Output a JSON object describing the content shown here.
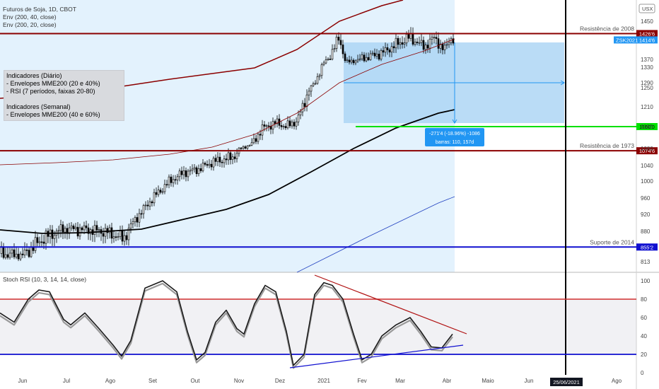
{
  "header": {
    "symbol_line": "Futuros de Soja, 1D, CBOT",
    "env1": "Env (200, 40, close)",
    "env2": "Env (200, 20, close)"
  },
  "currency_button": "USX",
  "notes": {
    "title_daily": "Indicadores (Diário)",
    "daily_1": "- Envelopes MME200 (20 e 40%)",
    "daily_2": "- RSI (7 períodos, faixas 20-80)",
    "title_weekly": "Indicadores (Semanal)",
    "weekly_1": "- Envelopes MME200 (40 e 60%)"
  },
  "levels": {
    "res2008": {
      "label": "Resistência de 2008",
      "value": "1426'6",
      "price": 1426.75,
      "color": "#8b0000"
    },
    "res1973": {
      "label": "Resistência de 1973",
      "value": "1074'6",
      "price": 1074.75,
      "color": "#8b0000"
    },
    "sup2014": {
      "label": "Suporte de 2014",
      "value": "855'2",
      "price": 855.25,
      "color": "#1010d0"
    },
    "target": {
      "value": "1160'0",
      "price": 1160,
      "color": "#00e000"
    },
    "last": {
      "symbol": "ZSK2021",
      "value": "1414'6",
      "price": 1414.75,
      "color": "#2196f3"
    }
  },
  "measure": {
    "line1": "-271'4 (-18.96%) -1086",
    "line2": "barras: 110, 157d"
  },
  "rsi_title": "Stoch RSI (10, 3, 14, 14, close)",
  "x_labels": [
    "Jun",
    "Jul",
    "Ago",
    "Set",
    "Out",
    "Nov",
    "Dez",
    "2021",
    "Fev",
    "Mar",
    "Abr",
    "Maio",
    "Jun",
    "Ago"
  ],
  "date_badge": "25/06/2021",
  "chart_data": [
    {
      "type": "candlestick",
      "title": "Futuros de Soja, 1D, CBOT",
      "y_ticks": [
        813,
        840,
        880,
        920,
        960,
        1000,
        1040,
        1080,
        1120,
        1160,
        1210,
        1250,
        1290,
        1330,
        1370,
        1410,
        1450
      ],
      "ylim": [
        800,
        1500
      ],
      "x_months": [
        "Jun",
        "Jul",
        "Ago",
        "Set",
        "Out",
        "Nov",
        "Dez",
        "2021",
        "Fev",
        "Mar",
        "Abr",
        "Maio",
        "Jun",
        "Ago"
      ],
      "series": [
        {
          "name": "Env (200, 40, close)",
          "color": "#8b0000"
        },
        {
          "name": "Env (200, 20, close)",
          "color": "#1a1a1a"
        }
      ],
      "close_approx": [
        {
          "x": "Jun",
          "y": 845
        },
        {
          "x": "Jul",
          "y": 890
        },
        {
          "x": "Ago",
          "y": 880
        },
        {
          "x": "Set",
          "y": 960
        },
        {
          "x": "Out",
          "y": 1040
        },
        {
          "x": "Nov",
          "y": 1130
        },
        {
          "x": "Dez",
          "y": 1170
        },
        {
          "x": "2021",
          "y": 1330
        },
        {
          "x": "Fev",
          "y": 1370
        },
        {
          "x": "Mar",
          "y": 1400
        },
        {
          "x": "Abr",
          "y": 1410
        }
      ],
      "horizontal_levels": [
        1426.75,
        1074.75,
        855.25,
        1160
      ]
    },
    {
      "type": "line",
      "title": "Stoch RSI (10, 3, 14, 14, close)",
      "y_ticks": [
        0,
        20,
        40,
        60,
        80,
        100
      ],
      "ylim": [
        0,
        100
      ],
      "bands": [
        20,
        80
      ]
    }
  ]
}
